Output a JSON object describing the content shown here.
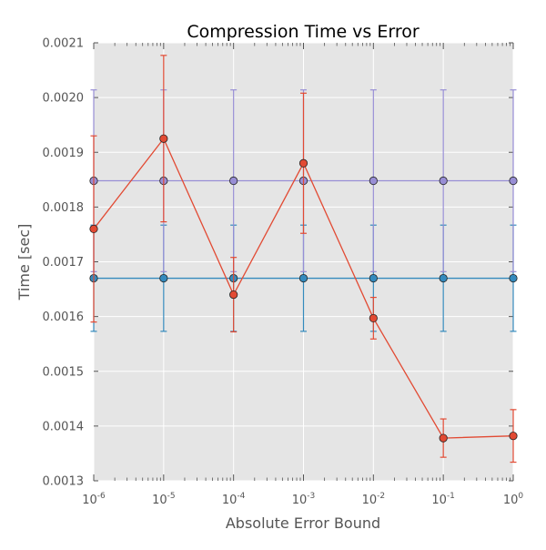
{
  "chart_data": {
    "type": "line",
    "title": "Compression Time vs Error",
    "xlabel": "Absolute Error Bound",
    "ylabel": "Time [sec]",
    "xscale": "log",
    "x": [
      1e-06,
      1e-05,
      0.0001,
      0.001,
      0.01,
      0.1,
      1
    ],
    "x_tick_labels": [
      {
        "base": "10",
        "exp": "-6"
      },
      {
        "base": "10",
        "exp": "-5"
      },
      {
        "base": "10",
        "exp": "-4"
      },
      {
        "base": "10",
        "exp": "-3"
      },
      {
        "base": "10",
        "exp": "-2"
      },
      {
        "base": "10",
        "exp": "-1"
      },
      {
        "base": "10",
        "exp": "0"
      }
    ],
    "xlim": [
      1e-06,
      1
    ],
    "ylim": [
      0.0013,
      0.0021
    ],
    "y_ticks": [
      "0.0013",
      "0.0014",
      "0.0015",
      "0.0016",
      "0.0017",
      "0.0018",
      "0.0019",
      "0.0020",
      "0.0021"
    ],
    "grid": true,
    "series": [
      {
        "color": "#348abd",
        "values": [
          0.00167,
          0.00167,
          0.00167,
          0.00167,
          0.00167,
          0.00167,
          0.00167
        ],
        "error": [
          9.7e-05,
          9.7e-05,
          9.7e-05,
          9.7e-05,
          9.7e-05,
          9.7e-05,
          9.7e-05
        ]
      },
      {
        "color": "#988ed5",
        "values": [
          0.001848,
          0.001848,
          0.001848,
          0.001848,
          0.001848,
          0.001848,
          0.001848
        ],
        "error": [
          0.000166,
          0.000166,
          0.000166,
          0.000166,
          0.000166,
          0.000166,
          0.000166
        ]
      },
      {
        "color": "#e24a33",
        "values": [
          0.00176,
          0.001925,
          0.00164,
          0.00188,
          0.001597,
          0.001378,
          0.001382
        ],
        "error": [
          0.00017,
          0.000152,
          6.8e-05,
          0.000128,
          3.8e-05,
          3.5e-05,
          4.8e-05
        ]
      }
    ]
  }
}
